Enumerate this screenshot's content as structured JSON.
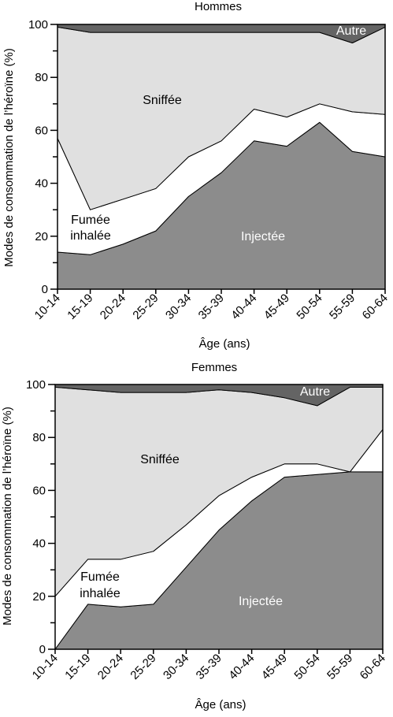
{
  "chart_data": [
    {
      "type": "area",
      "title": "Hommes",
      "xlabel": "Âge (ans)",
      "ylabel": "Modes de consommation de l’héroïne (%)",
      "categories": [
        "10-14",
        "15-19",
        "20-24",
        "25-29",
        "30-34",
        "35-39",
        "40-44",
        "45-49",
        "50-54",
        "55-59",
        "60-64"
      ],
      "ylim": [
        0,
        100
      ],
      "yticks": [
        0,
        20,
        40,
        60,
        80,
        100
      ],
      "stacked": true,
      "series": [
        {
          "name": "Injectée",
          "values": [
            14,
            13,
            17,
            22,
            35,
            44,
            56,
            54,
            63,
            52,
            50
          ]
        },
        {
          "name": "Fumée inhalée",
          "values": [
            43,
            17,
            17,
            16,
            15,
            12,
            12,
            11,
            7,
            15,
            16
          ]
        },
        {
          "name": "Sniffée",
          "values": [
            42,
            67,
            63,
            59,
            47,
            41,
            29,
            32,
            27,
            26,
            33
          ]
        },
        {
          "name": "Autre",
          "values": [
            1,
            3,
            3,
            3,
            3,
            3,
            3,
            3,
            3,
            7,
            1
          ]
        }
      ],
      "colors": {
        "Injectée": "#8c8c8c",
        "Fumée inhalée": "#ffffff",
        "Sniffée": "#e0e0e0",
        "Autre": "#646464"
      }
    },
    {
      "type": "area",
      "title": "Femmes",
      "xlabel": "Âge (ans)",
      "ylabel": "Modes de consommation de l’héroïne (%)",
      "categories": [
        "10-14",
        "15-19",
        "20-24",
        "25-29",
        "30-34",
        "35-39",
        "40-44",
        "45-49",
        "50-54",
        "55-59",
        "60-64"
      ],
      "ylim": [
        0,
        100
      ],
      "yticks": [
        0,
        20,
        40,
        60,
        80,
        100
      ],
      "stacked": true,
      "series": [
        {
          "name": "Injectée",
          "values": [
            0,
            17,
            16,
            17,
            31,
            45,
            56,
            65,
            66,
            67,
            67
          ]
        },
        {
          "name": "Fumée inhalée",
          "values": [
            20,
            17,
            18,
            20,
            16,
            13,
            9,
            5,
            4,
            0,
            16
          ]
        },
        {
          "name": "Sniffée",
          "values": [
            79,
            64,
            63,
            60,
            50,
            40,
            32,
            25,
            22,
            32,
            16
          ]
        },
        {
          "name": "Autre",
          "values": [
            1,
            2,
            3,
            3,
            3,
            2,
            3,
            5,
            8,
            1,
            1
          ]
        }
      ],
      "colors": {
        "Injectée": "#8c8c8c",
        "Fumée inhalée": "#ffffff",
        "Sniffée": "#e0e0e0",
        "Autre": "#646464"
      }
    }
  ],
  "panels": [
    {
      "title": "Hommes",
      "xlabel": "Âge (ans)",
      "ylabel": "Modes de consommation de l’héroïne (%)",
      "labels": {
        "autre": "Autre",
        "sniffee": "Sniffée",
        "fumee_1": "Fumée",
        "fumee_2": "inhalée",
        "injectee": "Injectée"
      }
    },
    {
      "title": "Femmes",
      "xlabel": "Âge (ans)",
      "ylabel": "Modes de consommation de l’héroïne (%)",
      "labels": {
        "autre": "Autre",
        "sniffee": "Sniffée",
        "fumee_1": "Fumée",
        "fumee_2": "inhalée",
        "injectee": "Injectée"
      }
    }
  ]
}
